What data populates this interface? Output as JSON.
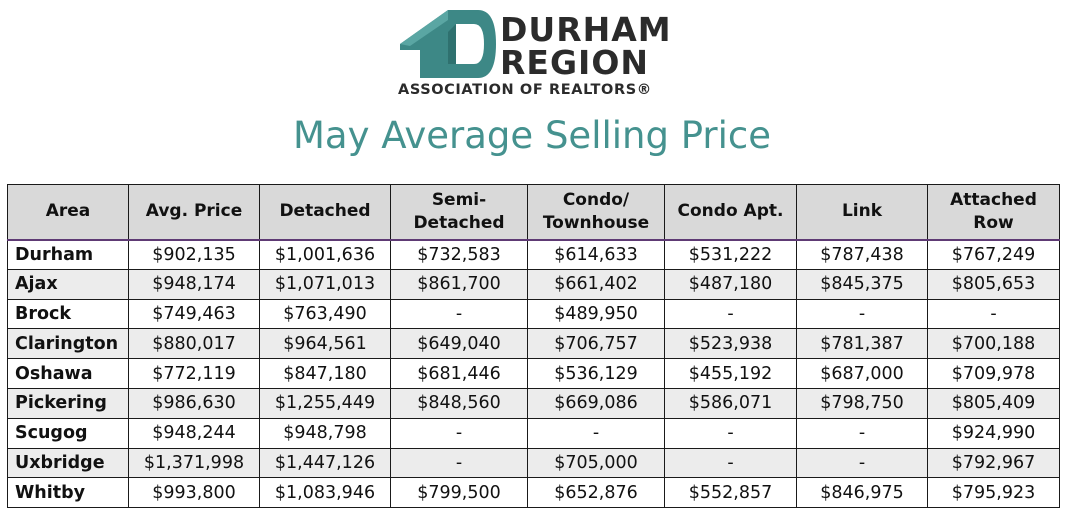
{
  "logo": {
    "line1": "DURHAM",
    "line2": "REGION",
    "line3": "ASSOCIATION OF REALTORS®",
    "house_color": "#3d8886"
  },
  "title": "May Average Selling Price",
  "colors": {
    "title": "#45928f",
    "header_bg": "#d9d9d9",
    "header_rule": "#5e3a74",
    "stripe": "#ececec"
  },
  "table": {
    "headers": [
      "Area",
      "Avg. Price",
      "Detached",
      "Semi-\nDetached",
      "Condo/\nTownhouse",
      "Condo Apt.",
      "Link",
      "Attached\nRow"
    ],
    "rows": [
      [
        "Durham",
        "$902,135",
        "$1,001,636",
        "$732,583",
        "$614,633",
        "$531,222",
        "$787,438",
        "$767,249"
      ],
      [
        "Ajax",
        "$948,174",
        "$1,071,013",
        "$861,700",
        "$661,402",
        "$487,180",
        "$845,375",
        "$805,653"
      ],
      [
        "Brock",
        "$749,463",
        "$763,490",
        "-",
        "$489,950",
        "-",
        "-",
        "-"
      ],
      [
        "Clarington",
        "$880,017",
        "$964,561",
        "$649,040",
        "$706,757",
        "$523,938",
        "$781,387",
        "$700,188"
      ],
      [
        "Oshawa",
        "$772,119",
        "$847,180",
        "$681,446",
        "$536,129",
        "$455,192",
        "$687,000",
        "$709,978"
      ],
      [
        "Pickering",
        "$986,630",
        "$1,255,449",
        "$848,560",
        "$669,086",
        "$586,071",
        "$798,750",
        "$805,409"
      ],
      [
        "Scugog",
        "$948,244",
        "$948,798",
        "-",
        "-",
        "-",
        "-",
        "$924,990"
      ],
      [
        "Uxbridge",
        "$1,371,998",
        "$1,447,126",
        "-",
        "$705,000",
        "-",
        "-",
        "$792,967"
      ],
      [
        "Whitby",
        "$993,800",
        "$1,083,946",
        "$799,500",
        "$652,876",
        "$552,857",
        "$846,975",
        "$795,923"
      ]
    ]
  }
}
